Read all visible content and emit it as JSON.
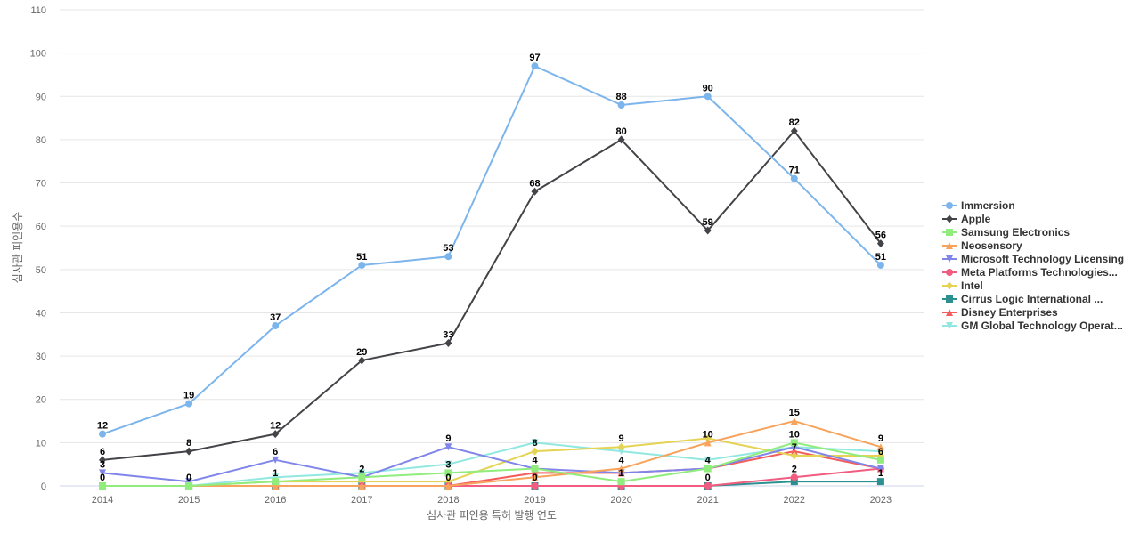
{
  "chart_data": {
    "type": "line",
    "title": "",
    "xlabel": "심사관 피인용 특허 발행 연도",
    "ylabel": "심사관 피인용수",
    "x": [
      "2014",
      "2015",
      "2016",
      "2017",
      "2018",
      "2019",
      "2020",
      "2021",
      "2022",
      "2023"
    ],
    "ylim": [
      0,
      110
    ],
    "yticks": [
      0,
      10,
      20,
      30,
      40,
      50,
      60,
      70,
      80,
      90,
      100,
      110
    ],
    "grid": true,
    "legend": "right",
    "series": [
      {
        "name": "Immersion",
        "color": "#7cb5ec",
        "marker": "circle",
        "values": [
          12,
          19,
          37,
          51,
          53,
          97,
          88,
          90,
          71,
          51
        ],
        "labeled": true
      },
      {
        "name": "Apple",
        "color": "#434348",
        "marker": "diamond",
        "values": [
          6,
          8,
          12,
          29,
          33,
          68,
          80,
          59,
          82,
          56
        ],
        "labeled": true
      },
      {
        "name": "Samsung Electronics",
        "color": "#90ed7d",
        "marker": "square",
        "values": [
          0,
          0,
          1,
          2,
          3,
          4,
          1,
          4,
          10,
          6
        ],
        "labeled": false
      },
      {
        "name": "Neosensory",
        "color": "#f7a35c",
        "marker": "triangle",
        "values": [
          0,
          0,
          0,
          0,
          0,
          2,
          4,
          10,
          15,
          9
        ],
        "labeled": false
      },
      {
        "name": "Microsoft Technology Licensing",
        "color": "#8085e9",
        "marker": "triangle-down",
        "values": [
          3,
          1,
          6,
          2,
          9,
          4,
          3,
          4,
          9,
          4
        ],
        "labeled": false
      },
      {
        "name": "Meta Platforms Technologies...",
        "color": "#f15c80",
        "marker": "circle",
        "values": [
          0,
          0,
          0,
          0,
          0,
          0,
          0,
          0,
          2,
          4
        ],
        "labeled": false
      },
      {
        "name": "Intel",
        "color": "#e4d354",
        "marker": "diamond",
        "values": [
          0,
          0,
          1,
          1,
          1,
          8,
          9,
          11,
          7,
          7
        ],
        "labeled": false
      },
      {
        "name": "Cirrus Logic International ...",
        "color": "#2b908f",
        "marker": "square",
        "values": [
          0,
          0,
          0,
          0,
          0,
          0,
          0,
          0,
          1,
          1
        ],
        "labeled": false
      },
      {
        "name": "Disney Enterprises",
        "color": "#f45b5b",
        "marker": "triangle",
        "values": [
          0,
          0,
          0,
          0,
          0,
          3,
          3,
          4,
          8,
          4
        ],
        "labeled": false
      },
      {
        "name": "GM Global Technology Operat...",
        "color": "#91e8e1",
        "marker": "triangle-down",
        "values": [
          0,
          0,
          2,
          3,
          5,
          10,
          8,
          6,
          9,
          8
        ],
        "labeled": false
      }
    ],
    "annotations": [
      {
        "x": "2014",
        "y": 3,
        "text": "3"
      },
      {
        "x": "2014",
        "y": 0,
        "text": "0"
      },
      {
        "x": "2015",
        "y": 0,
        "text": "0"
      },
      {
        "x": "2016",
        "y": 6,
        "text": "6"
      },
      {
        "x": "2016",
        "y": 1,
        "text": "1"
      },
      {
        "x": "2017",
        "y": 2,
        "text": "2"
      },
      {
        "x": "2018",
        "y": 9,
        "text": "9"
      },
      {
        "x": "2018",
        "y": 3,
        "text": "3"
      },
      {
        "x": "2018",
        "y": 0,
        "text": "0"
      },
      {
        "x": "2019",
        "y": 8,
        "text": "8"
      },
      {
        "x": "2019",
        "y": 4,
        "text": "4"
      },
      {
        "x": "2019",
        "y": 0,
        "text": "0"
      },
      {
        "x": "2020",
        "y": 9,
        "text": "9"
      },
      {
        "x": "2020",
        "y": 4,
        "text": "4"
      },
      {
        "x": "2020",
        "y": 1,
        "text": "1"
      },
      {
        "x": "2021",
        "y": 10,
        "text": "10"
      },
      {
        "x": "2021",
        "y": 4,
        "text": "4"
      },
      {
        "x": "2021",
        "y": 0,
        "text": "0"
      },
      {
        "x": "2022",
        "y": 15,
        "text": "15"
      },
      {
        "x": "2022",
        "y": 10,
        "text": "10"
      },
      {
        "x": "2022",
        "y": 7,
        "text": "7"
      },
      {
        "x": "2022",
        "y": 2,
        "text": "2"
      },
      {
        "x": "2023",
        "y": 9,
        "text": "9"
      },
      {
        "x": "2023",
        "y": 6,
        "text": "6"
      },
      {
        "x": "2023",
        "y": 1,
        "text": "1"
      }
    ]
  }
}
